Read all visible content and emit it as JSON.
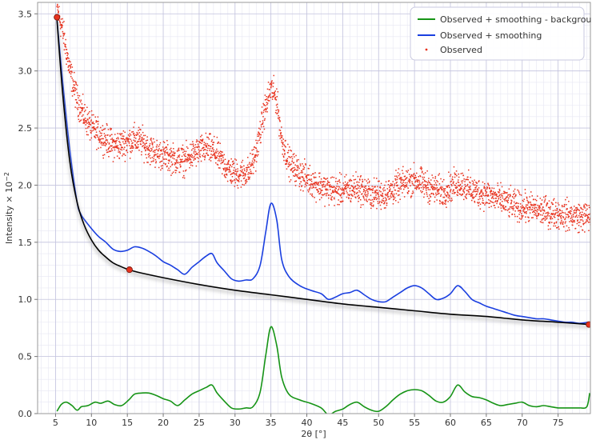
{
  "chart_data": {
    "type": "line",
    "xlabel": "2θ [°]",
    "ylabel": "Intensity × 10",
    "ylabel_exponent": "−2",
    "xlim": [
      2.5,
      79.5
    ],
    "ylim": [
      0,
      3.6
    ],
    "xticks": [
      5,
      10,
      15,
      20,
      25,
      30,
      35,
      40,
      45,
      50,
      55,
      60,
      65,
      70,
      75
    ],
    "yticks": [
      0.0,
      0.5,
      1.0,
      1.5,
      2.0,
      2.5,
      3.0,
      3.5
    ],
    "ytick_labels": [
      "0.0",
      "0.5",
      "1.0",
      "1.5",
      "2.0",
      "2.5",
      "3.0",
      "3.5"
    ],
    "grid": true,
    "legend_position": "top-right",
    "legend": [
      {
        "label": "Observed + smoothing - background",
        "color": "#169416",
        "kind": "line"
      },
      {
        "label": "Observed + smoothing",
        "color": "#1a3fe0",
        "kind": "line"
      },
      {
        "label": "Observed",
        "color": "#e8321e",
        "kind": "marker"
      }
    ],
    "series": [
      {
        "name": "Observed",
        "kind": "scatter",
        "color": "#e8321e",
        "profile": [
          [
            5.2,
            3.55
          ],
          [
            6,
            3.35
          ],
          [
            7,
            3.0
          ],
          [
            8,
            2.75
          ],
          [
            9,
            2.6
          ],
          [
            10,
            2.5
          ],
          [
            11,
            2.45
          ],
          [
            12,
            2.4
          ],
          [
            13,
            2.35
          ],
          [
            14,
            2.35
          ],
          [
            15,
            2.38
          ],
          [
            16,
            2.4
          ],
          [
            17,
            2.38
          ],
          [
            18,
            2.32
          ],
          [
            19,
            2.28
          ],
          [
            20,
            2.26
          ],
          [
            21,
            2.24
          ],
          [
            22,
            2.22
          ],
          [
            23,
            2.22
          ],
          [
            24,
            2.26
          ],
          [
            25,
            2.3
          ],
          [
            26,
            2.32
          ],
          [
            27,
            2.3
          ],
          [
            28,
            2.22
          ],
          [
            29,
            2.14
          ],
          [
            30,
            2.1
          ],
          [
            31,
            2.1
          ],
          [
            32,
            2.12
          ],
          [
            33,
            2.3
          ],
          [
            34,
            2.62
          ],
          [
            35,
            2.85
          ],
          [
            35.8,
            2.75
          ],
          [
            36.5,
            2.4
          ],
          [
            37.5,
            2.2
          ],
          [
            39,
            2.1
          ],
          [
            41,
            2.02
          ],
          [
            43,
            1.96
          ],
          [
            45,
            1.95
          ],
          [
            47,
            1.98
          ],
          [
            49,
            1.92
          ],
          [
            51,
            1.92
          ],
          [
            53,
            2.0
          ],
          [
            55,
            2.05
          ],
          [
            57,
            1.98
          ],
          [
            59,
            1.94
          ],
          [
            61,
            2.02
          ],
          [
            62,
            2.0
          ],
          [
            63,
            1.95
          ],
          [
            65,
            1.92
          ],
          [
            67,
            1.87
          ],
          [
            69,
            1.82
          ],
          [
            71,
            1.8
          ],
          [
            73,
            1.77
          ],
          [
            75,
            1.75
          ],
          [
            77,
            1.73
          ],
          [
            79.5,
            1.72
          ]
        ],
        "noise": 0.09,
        "count": 3000
      },
      {
        "name": "Observed + smoothing",
        "kind": "line",
        "color": "#1a3fe0",
        "x": [
          5.2,
          6,
          7,
          8,
          8.5,
          9,
          10,
          11,
          12,
          13,
          14,
          15,
          16,
          17,
          18,
          19,
          20,
          21,
          22,
          23,
          24,
          25,
          26,
          26.8,
          27.5,
          28.5,
          29.5,
          30.5,
          31.5,
          32.5,
          33.5,
          34.3,
          35,
          35.8,
          36.5,
          37.5,
          39,
          40.5,
          42,
          43,
          44,
          45,
          46,
          47,
          48,
          49,
          50,
          51,
          52,
          53,
          54,
          55,
          56,
          57,
          58,
          59,
          60,
          61,
          62,
          63,
          64,
          65,
          66,
          67,
          68,
          69,
          70,
          71,
          72,
          73,
          74,
          75,
          76,
          77,
          78,
          79.2
        ],
        "y": [
          3.45,
          2.9,
          2.3,
          1.85,
          1.75,
          1.7,
          1.62,
          1.55,
          1.5,
          1.44,
          1.42,
          1.43,
          1.46,
          1.45,
          1.42,
          1.38,
          1.33,
          1.3,
          1.26,
          1.22,
          1.28,
          1.33,
          1.38,
          1.4,
          1.32,
          1.25,
          1.18,
          1.16,
          1.17,
          1.18,
          1.3,
          1.6,
          1.84,
          1.7,
          1.35,
          1.2,
          1.12,
          1.08,
          1.05,
          1.0,
          1.02,
          1.05,
          1.06,
          1.08,
          1.04,
          1.0,
          0.98,
          0.98,
          1.02,
          1.06,
          1.1,
          1.12,
          1.1,
          1.05,
          1.0,
          1.01,
          1.05,
          1.12,
          1.07,
          1.0,
          0.97,
          0.94,
          0.92,
          0.9,
          0.88,
          0.86,
          0.85,
          0.84,
          0.83,
          0.83,
          0.82,
          0.81,
          0.8,
          0.8,
          0.79,
          0.8
        ]
      },
      {
        "name": "Observed + smoothing - background",
        "kind": "line",
        "color": "#169416",
        "x": [
          5.2,
          5.8,
          6.5,
          7.3,
          8,
          8.6,
          9.5,
          10.5,
          11.3,
          12.3,
          13.2,
          14.2,
          15.2,
          16,
          17,
          18,
          19,
          20,
          21,
          22,
          23,
          24,
          25,
          26,
          26.8,
          27.5,
          28.5,
          29.5,
          30.5,
          31.5,
          32.5,
          33.5,
          34.3,
          35,
          35.8,
          36.5,
          37.5,
          39,
          40.5,
          42,
          43,
          44,
          45,
          46,
          47,
          48,
          49,
          50,
          51,
          52,
          53,
          54,
          55,
          56,
          57,
          58,
          59,
          60,
          61,
          62,
          63,
          64,
          65,
          66,
          67,
          68,
          69,
          70,
          71,
          72,
          73,
          74,
          75,
          76,
          77,
          78,
          79,
          79.4
        ],
        "y": [
          0.02,
          0.08,
          0.1,
          0.07,
          0.03,
          0.06,
          0.07,
          0.1,
          0.09,
          0.11,
          0.08,
          0.07,
          0.12,
          0.17,
          0.18,
          0.18,
          0.16,
          0.13,
          0.11,
          0.07,
          0.12,
          0.17,
          0.2,
          0.23,
          0.25,
          0.18,
          0.11,
          0.05,
          0.04,
          0.05,
          0.06,
          0.19,
          0.52,
          0.76,
          0.6,
          0.32,
          0.17,
          0.12,
          0.09,
          0.05,
          -0.01,
          0.02,
          0.04,
          0.08,
          0.1,
          0.06,
          0.03,
          0.02,
          0.06,
          0.12,
          0.17,
          0.2,
          0.21,
          0.2,
          0.16,
          0.11,
          0.1,
          0.15,
          0.25,
          0.19,
          0.15,
          0.14,
          0.12,
          0.09,
          0.07,
          0.08,
          0.09,
          0.1,
          0.07,
          0.06,
          0.07,
          0.06,
          0.05,
          0.05,
          0.05,
          0.05,
          0.06,
          0.18
        ]
      },
      {
        "name": "background",
        "kind": "line",
        "color": "#000000",
        "x": [
          5.2,
          6,
          7,
          8,
          9,
          10,
          11,
          12,
          13,
          14,
          15.2,
          17,
          20,
          25,
          30,
          35,
          40,
          45,
          50,
          55,
          60,
          65,
          70,
          75,
          79.3
        ],
        "y": [
          3.45,
          2.8,
          2.2,
          1.85,
          1.65,
          1.52,
          1.43,
          1.37,
          1.32,
          1.29,
          1.26,
          1.23,
          1.19,
          1.13,
          1.08,
          1.04,
          1.0,
          0.96,
          0.93,
          0.9,
          0.87,
          0.85,
          0.82,
          0.8,
          0.78
        ]
      }
    ],
    "control_points": [
      {
        "x": 5.2,
        "y": 3.47
      },
      {
        "x": 15.3,
        "y": 1.26
      },
      {
        "x": 79.3,
        "y": 0.78
      }
    ]
  }
}
